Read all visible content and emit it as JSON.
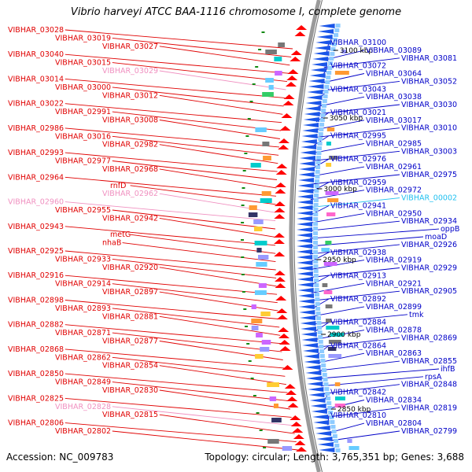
{
  "title": "Vibrio harveyi ATCC BAA-1116 chromosome I, complete genome",
  "accession": "Accession: NC_009783",
  "summary": "Topology: circular; Length: 3,765,351 bp; Genes: 3,688",
  "colors": {
    "left_label": "#e00000",
    "left_label_faint": "#f090c0",
    "right_label": "#0000c8",
    "right_label_faint": "#20c0f0",
    "forward_arrow": "#ff0000",
    "reverse_arrow": "#1a55e8",
    "backbone": "#909090"
  },
  "scale_ticks": [
    "3100 kbp",
    "3050 kbp",
    "3000 kbp",
    "2950 kbp",
    "2900 kbp",
    "2850 kbp"
  ],
  "left_labels": [
    "VIBHAR_03028",
    "VIBHAR_03019",
    "VIBHAR_03027",
    "VIBHAR_03040",
    "VIBHAR_03015",
    "VIBHAR_03029",
    "VIBHAR_03014",
    "VIBHAR_03000",
    "VIBHAR_03012",
    "VIBHAR_03022",
    "VIBHAR_02991",
    "VIBHAR_03008",
    "VIBHAR_02986",
    "VIBHAR_03016",
    "VIBHAR_02982",
    "VIBHAR_02993",
    "VIBHAR_02977",
    "VIBHAR_02968",
    "VIBHAR_02964",
    "rnfD",
    "VIBHAR_02962",
    "VIBHAR_02960",
    "VIBHAR_02955",
    "VIBHAR_02942",
    "VIBHAR_02943",
    "metG",
    "nhaB",
    "VIBHAR_02925",
    "VIBHAR_02933",
    "VIBHAR_02920",
    "VIBHAR_02916",
    "VIBHAR_02914",
    "VIBHAR_02897",
    "VIBHAR_02898",
    "VIBHAR_02893",
    "VIBHAR_02881",
    "VIBHAR_02882",
    "VIBHAR_02871",
    "VIBHAR_02877",
    "VIBHAR_02868",
    "VIBHAR_02862",
    "VIBHAR_02854",
    "VIBHAR_02850",
    "VIBHAR_02849",
    "VIBHAR_02830",
    "VIBHAR_02825",
    "VIBHAR_02828",
    "VIBHAR_02815",
    "VIBHAR_02806",
    "VIBHAR_02802"
  ],
  "right_labels": [
    "VIBHAR_03100",
    "VIBHAR_03089",
    "VIBHAR_03081",
    "VIBHAR_03072",
    "VIBHAR_03064",
    "VIBHAR_03052",
    "VIBHAR_03043",
    "VIBHAR_03038",
    "VIBHAR_03030",
    "VIBHAR_03021",
    "VIBHAR_03017",
    "VIBHAR_03010",
    "VIBHAR_02995",
    "VIBHAR_02985",
    "VIBHAR_03003",
    "VIBHAR_02976",
    "VIBHAR_02961",
    "VIBHAR_02975",
    "VIBHAR_02959",
    "VIBHAR_02972",
    "VIBHAR_00002",
    "VIBHAR_02941",
    "VIBHAR_02950",
    "VIBHAR_02934",
    "oppB",
    "moaD",
    "VIBHAR_02926",
    "VIBHAR_02938",
    "VIBHAR_02919",
    "VIBHAR_02929",
    "VIBHAR_02913",
    "VIBHAR_02921",
    "VIBHAR_02905",
    "VIBHAR_02892",
    "VIBHAR_02899",
    "tmk",
    "VIBHAR_02884",
    "VIBHAR_02878",
    "VIBHAR_02869",
    "VIBHAR_02864",
    "VIBHAR_02863",
    "VIBHAR_02855",
    "ihfB",
    "rpsA",
    "VIBHAR_02848",
    "VIBHAR_02842",
    "VIBHAR_02834",
    "VIBHAR_02819",
    "VIBHAR_02810",
    "VIBHAR_02804",
    "VIBHAR_02799"
  ]
}
